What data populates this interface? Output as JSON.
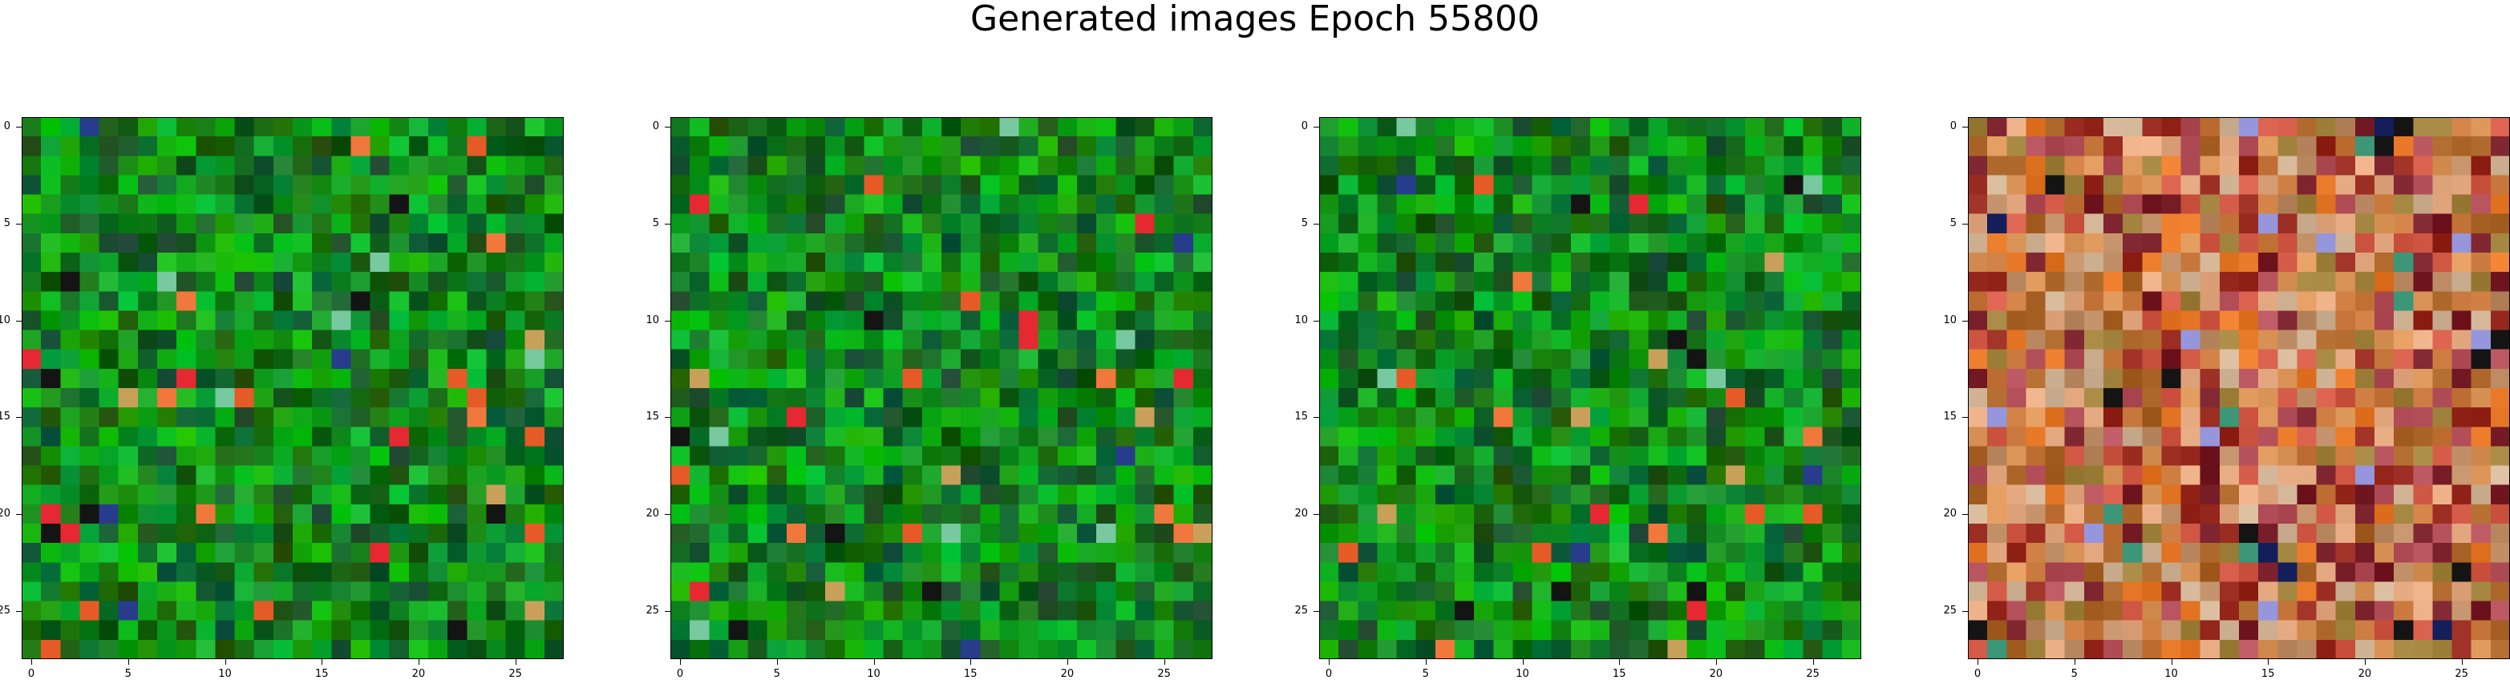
{
  "title": "Generated images Epoch 55800",
  "grid_size": 28,
  "ticks": [
    "0",
    "5",
    "10",
    "15",
    "20",
    "25"
  ],
  "tick_values": [
    0,
    5,
    10,
    15,
    20,
    25
  ],
  "images": [
    {
      "name": "generated-image-1",
      "palette": "green"
    },
    {
      "name": "generated-image-2",
      "palette": "green"
    },
    {
      "name": "generated-image-3",
      "palette": "green"
    },
    {
      "name": "generated-image-4",
      "palette": "warm-mixed"
    }
  ]
}
